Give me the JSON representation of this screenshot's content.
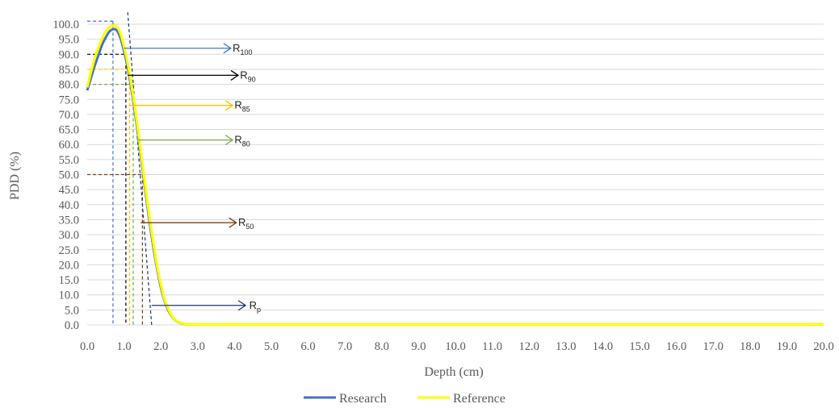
{
  "chart_data": {
    "type": "line",
    "xlabel": "Depth (cm)",
    "ylabel": "PDD (%)",
    "xlim": [
      0,
      20
    ],
    "ylim": [
      0,
      100
    ],
    "x_ticks": [
      "0.0",
      "1.0",
      "2.0",
      "3.0",
      "4.0",
      "5.0",
      "6.0",
      "7.0",
      "8.0",
      "9.0",
      "10.0",
      "11.0",
      "12.0",
      "13.0",
      "14.0",
      "15.0",
      "16.0",
      "17.0",
      "18.0",
      "19.0",
      "20.0"
    ],
    "y_ticks": [
      "0.0",
      "5.0",
      "10.0",
      "15.0",
      "20.0",
      "25.0",
      "30.0",
      "35.0",
      "40.0",
      "45.0",
      "50.0",
      "55.0",
      "60.0",
      "65.0",
      "70.0",
      "75.0",
      "80.0",
      "85.0",
      "90.0",
      "95.0",
      "100.0"
    ],
    "grid": true,
    "legend_position": "bottom",
    "series": [
      {
        "name": "Research",
        "color": "#4472c4",
        "x": [
          0.0,
          0.1,
          0.2,
          0.3,
          0.4,
          0.5,
          0.6,
          0.7,
          0.8,
          0.9,
          1.0,
          1.1,
          1.2,
          1.3,
          1.4,
          1.5,
          1.6,
          1.7,
          1.8,
          1.9,
          2.0,
          2.1,
          2.2,
          2.3,
          2.4,
          2.5,
          2.6,
          2.7,
          2.8,
          3.0,
          4.0,
          6.0,
          8.0,
          10.0,
          12.0,
          14.0,
          16.0,
          18.0,
          20.0
        ],
        "values": [
          78.0,
          82.0,
          86.0,
          89.5,
          93.0,
          95.5,
          97.5,
          98.3,
          98.0,
          95.5,
          91.0,
          85.5,
          78.5,
          70.5,
          61.5,
          52.0,
          42.5,
          33.5,
          25.5,
          18.5,
          12.5,
          8.0,
          5.0,
          2.8,
          1.5,
          0.8,
          0.4,
          0.25,
          0.2,
          0.2,
          0.2,
          0.2,
          0.2,
          0.2,
          0.2,
          0.2,
          0.2,
          0.2,
          0.2
        ]
      },
      {
        "name": "Reference",
        "color": "#ffff00",
        "x": [
          0.0,
          0.1,
          0.2,
          0.3,
          0.4,
          0.5,
          0.6,
          0.7,
          0.8,
          0.9,
          1.0,
          1.1,
          1.2,
          1.3,
          1.4,
          1.5,
          1.6,
          1.7,
          1.8,
          1.9,
          2.0,
          2.1,
          2.2,
          2.3,
          2.4,
          2.5,
          2.6,
          2.7,
          2.8,
          3.0,
          4.0,
          6.0,
          8.0,
          10.0,
          12.0,
          14.0,
          16.0,
          18.0,
          20.0
        ],
        "values": [
          79.0,
          84.0,
          88.5,
          92.0,
          95.0,
          97.5,
          99.0,
          99.5,
          99.2,
          97.0,
          92.5,
          87.0,
          80.0,
          72.0,
          63.0,
          53.5,
          44.0,
          35.0,
          27.0,
          19.5,
          13.5,
          8.5,
          5.5,
          3.0,
          1.6,
          0.9,
          0.5,
          0.3,
          0.2,
          0.2,
          0.2,
          0.2,
          0.2,
          0.2,
          0.2,
          0.2,
          0.2,
          0.2,
          0.2
        ]
      }
    ],
    "annotations": [
      {
        "main": "R",
        "sub": "100",
        "pdd": 101,
        "depth": 0.7,
        "color": "#4472c4",
        "arrow_y": 92,
        "arrow_x": [
          1.0,
          3.9
        ],
        "label_x": 3.95,
        "drop": true,
        "hline_from": 0.0
      },
      {
        "main": "R",
        "sub": "90",
        "pdd": 90,
        "depth": 1.05,
        "color": "#000000",
        "arrow_y": 83,
        "arrow_x": [
          1.1,
          4.1
        ],
        "label_x": 4.15,
        "drop": true,
        "hline_from": 0.0
      },
      {
        "main": "R",
        "sub": "85",
        "pdd": 85,
        "depth": 1.15,
        "color": "#ffc000",
        "arrow_y": 73,
        "arrow_x": [
          1.15,
          3.95
        ],
        "label_x": 4.0,
        "drop": true,
        "hline_from": 0.0
      },
      {
        "main": "R",
        "sub": "80",
        "pdd": 80,
        "depth": 1.25,
        "color": "#70ad47",
        "arrow_y": 61.5,
        "arrow_x": [
          1.35,
          3.95
        ],
        "label_x": 4.0,
        "drop": true,
        "hline_from": 0.0
      },
      {
        "main": "R",
        "sub": "50",
        "pdd": 50,
        "depth": 1.5,
        "color": "#843c0c",
        "arrow_y": 34,
        "arrow_x": [
          1.45,
          4.05
        ],
        "label_x": 4.1,
        "drop": true,
        "hline_from": 0.0
      },
      {
        "main": "R",
        "sub": "p",
        "pdd": 0,
        "depth": 1.75,
        "color": "#1f3864",
        "arrow_y": 6.5,
        "arrow_x": [
          1.75,
          4.3
        ],
        "label_x": 4.4,
        "drop": false,
        "hline_from": 0.0
      }
    ]
  }
}
